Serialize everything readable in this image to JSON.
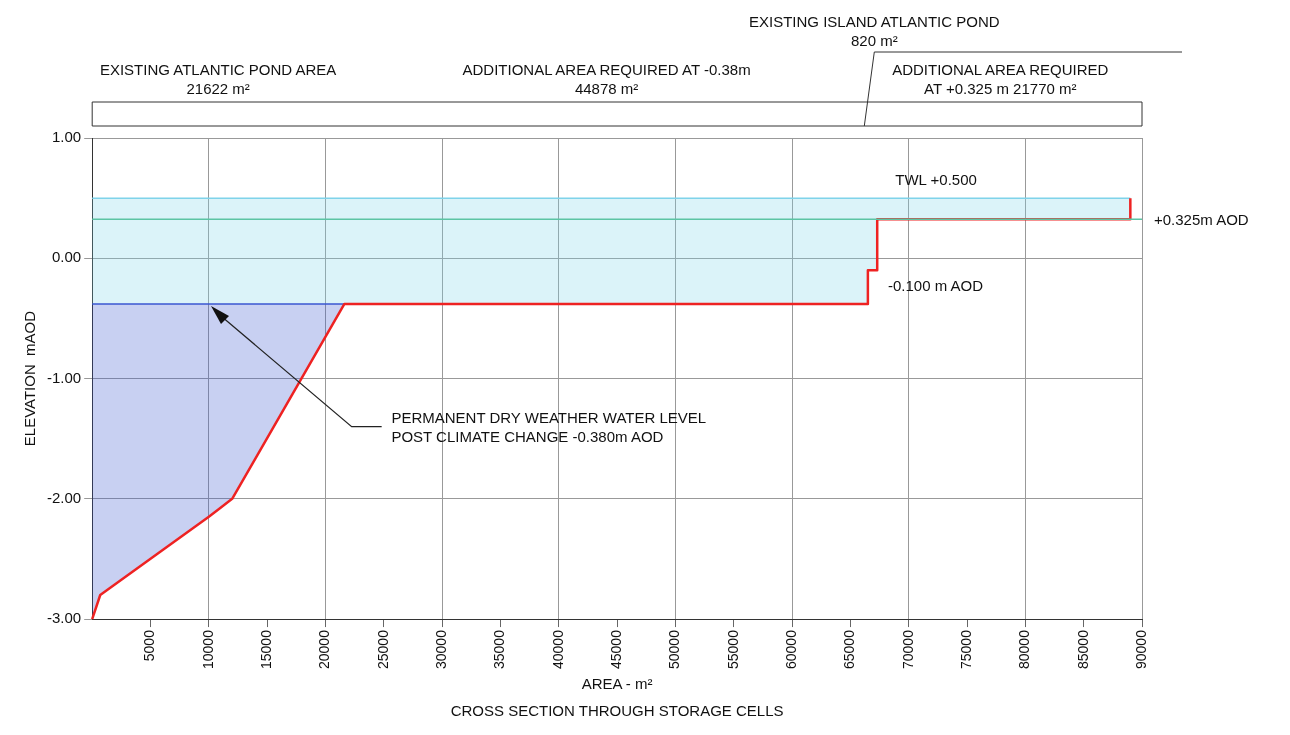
{
  "chart_data": {
    "type": "line",
    "xlabel": "AREA - m²",
    "ylabel": "ELEVATION  mAOD",
    "xlim": [
      0,
      90000
    ],
    "ylim": [
      -3,
      1
    ],
    "xticks": [
      5000,
      10000,
      15000,
      20000,
      25000,
      30000,
      35000,
      40000,
      45000,
      50000,
      55000,
      60000,
      65000,
      70000,
      75000,
      80000,
      85000,
      90000
    ],
    "yticks": [
      {
        "value": -3,
        "label": "-3.00"
      },
      {
        "value": -2,
        "label": "-2.00"
      },
      {
        "value": -1,
        "label": "-1.00"
      },
      {
        "value": 0,
        "label": "0.00"
      },
      {
        "value": 1,
        "label": "1.00"
      }
    ],
    "grid": true,
    "legend": false,
    "series": [
      {
        "color": "#3a56d0",
        "x": [
          0,
          690,
          10000,
          12000,
          21622
        ],
        "values": [
          -0.38,
          -0.38,
          -0.38,
          -0.38,
          -0.38
        ],
        "upper": [
          -0.38,
          -0.38,
          -0.38,
          -0.38,
          -0.38
        ],
        "lower": [
          -3,
          -2.8,
          -2.15,
          -2,
          -0.38
        ]
      },
      {
        "color": "#7fd3ea",
        "x": [
          0,
          21622,
          66500,
          66500,
          67300,
          67300,
          89000
        ],
        "values": [
          0.5,
          0.5,
          0.5,
          0.5,
          0.5,
          0.5,
          0.5
        ],
        "upper": [
          0.5,
          0.5,
          0.5,
          0.5,
          0.5,
          0.5,
          0.5
        ],
        "lower": [
          -0.38,
          -0.38,
          -0.38,
          -0.1,
          -0.1,
          0.325,
          0.325
        ]
      },
      {
        "color": "#ee2222",
        "x": [
          0,
          690,
          10000,
          12000,
          21622,
          66500,
          66500,
          67300,
          67300,
          89000,
          89000
        ],
        "values": [
          -3,
          -2.8,
          -2.15,
          -2,
          -0.38,
          -0.38,
          -0.1,
          -0.1,
          0.325,
          0.325,
          0.5
        ]
      }
    ],
    "ref_lines": [
      {
        "axis": "y",
        "value": 0.325,
        "label": "+0.325m AOD",
        "color": "#5cc4a4"
      }
    ],
    "annotations": [
      "EXISTING ATLANTIC POND AREA\n21622 m²",
      "ADDITIONAL AREA REQUIRED AT -0.38m\n44878 m²",
      "EXISTING ISLAND ATLANTIC POND\n820 m²",
      "ADDITIONAL AREA REQUIRED\nAT +0.325 m 21770 m²",
      "TWL +0.500",
      "-0.100 m AOD",
      "PERMANENT DRY WEATHER WATER LEVEL\nPOST CLIMATE CHANGE -0.380m AOD",
      "CROSS SECTION THROUGH STORAGE CELLS"
    ]
  }
}
